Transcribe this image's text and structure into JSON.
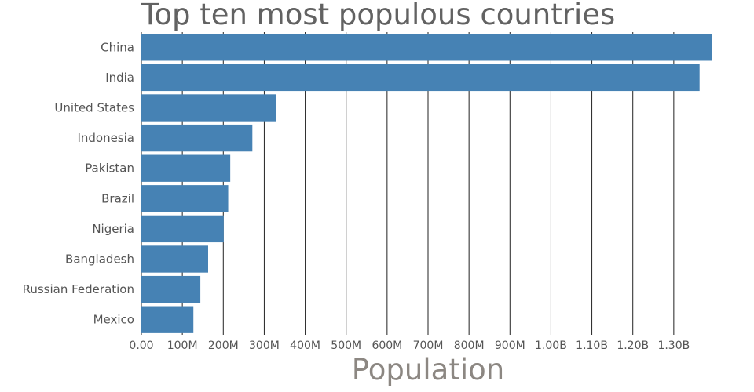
{
  "chart_data": {
    "type": "bar",
    "orientation": "horizontal",
    "title": "Top ten most populous countries",
    "xlabel": "Population",
    "ylabel": "",
    "categories": [
      "China",
      "India",
      "United States",
      "Indonesia",
      "Pakistan",
      "Brazil",
      "Nigeria",
      "Bangladesh",
      "Russian Federation",
      "Mexico"
    ],
    "values": [
      1393000000,
      1363000000,
      328000000,
      271000000,
      217000000,
      212000000,
      201000000,
      163000000,
      144000000,
      127000000
    ],
    "xlim": [
      0,
      1400000000
    ],
    "x_ticks": [
      0,
      100000000,
      200000000,
      300000000,
      400000000,
      500000000,
      600000000,
      700000000,
      800000000,
      900000000,
      1000000000,
      1100000000,
      1200000000,
      1300000000
    ],
    "x_tick_labels": [
      "0.00",
      "100M",
      "200M",
      "300M",
      "400M",
      "500M",
      "600M",
      "700M",
      "800M",
      "900M",
      "1.00B",
      "1.10B",
      "1.20B",
      "1.30B"
    ],
    "grid": true,
    "bar_color": "#4682b4"
  }
}
